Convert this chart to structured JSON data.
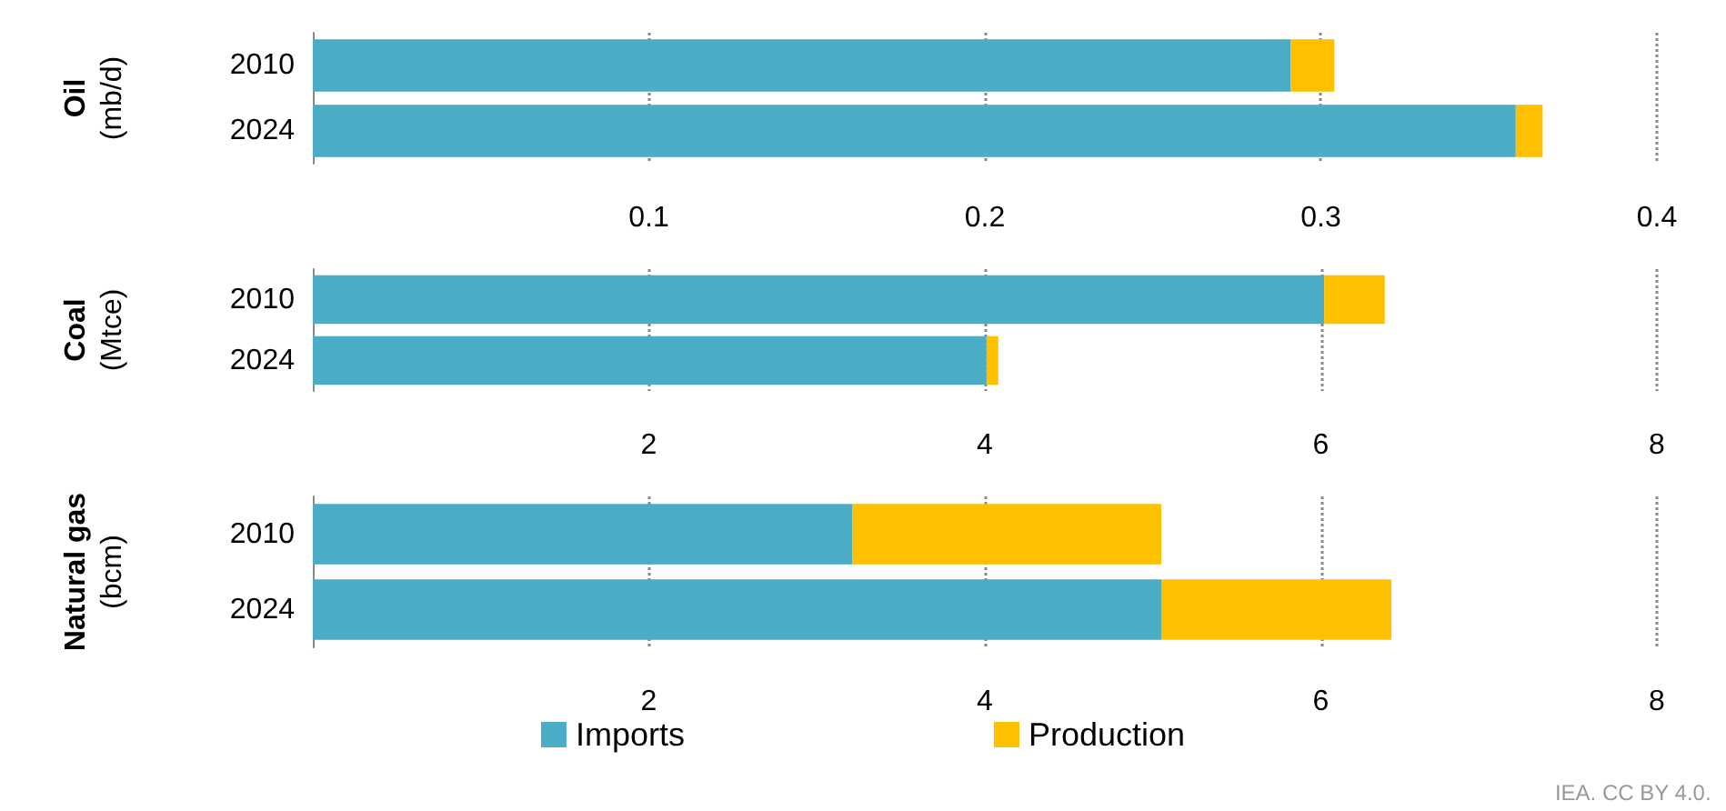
{
  "chart_data": [
    {
      "type": "bar",
      "orientation": "horizontal",
      "stacked": true,
      "ylabel": "Oil\n(mb/d)",
      "categories": [
        "2010",
        "2024"
      ],
      "xlim": [
        0,
        0.4
      ],
      "xticks": [
        0.1,
        0.2,
        0.3,
        0.4
      ],
      "grid": "x",
      "legend": false,
      "series": [
        {
          "color": "#4bacc6",
          "values": [
            0.291,
            0.358
          ]
        },
        {
          "color": "#ffc000",
          "values": [
            0.013,
            0.008
          ]
        }
      ]
    },
    {
      "type": "bar",
      "orientation": "horizontal",
      "stacked": true,
      "ylabel": "Coal\n(Mtce)",
      "categories": [
        "2010",
        "2024"
      ],
      "xlim": [
        0,
        8
      ],
      "xticks": [
        2,
        4,
        6,
        8
      ],
      "grid": "x",
      "legend": false,
      "series": [
        {
          "color": "#4bacc6",
          "values": [
            6.02,
            4.01
          ]
        },
        {
          "color": "#ffc000",
          "values": [
            0.36,
            0.07
          ]
        }
      ]
    },
    {
      "type": "bar",
      "orientation": "horizontal",
      "stacked": true,
      "ylabel": "Natural gas\n(bcm)",
      "categories": [
        "2010",
        "2024"
      ],
      "xlim": [
        0,
        8
      ],
      "xticks": [
        2,
        4,
        6,
        8
      ],
      "grid": "x",
      "legend": "bottom",
      "annotations": [
        "IEA. CC BY 4.0."
      ],
      "series": [
        {
          "name": "Imports",
          "color": "#4bacc6",
          "values": [
            3.21,
            5.05
          ]
        },
        {
          "name": "Production",
          "color": "#ffc000",
          "values": [
            1.84,
            1.37
          ]
        }
      ]
    }
  ]
}
